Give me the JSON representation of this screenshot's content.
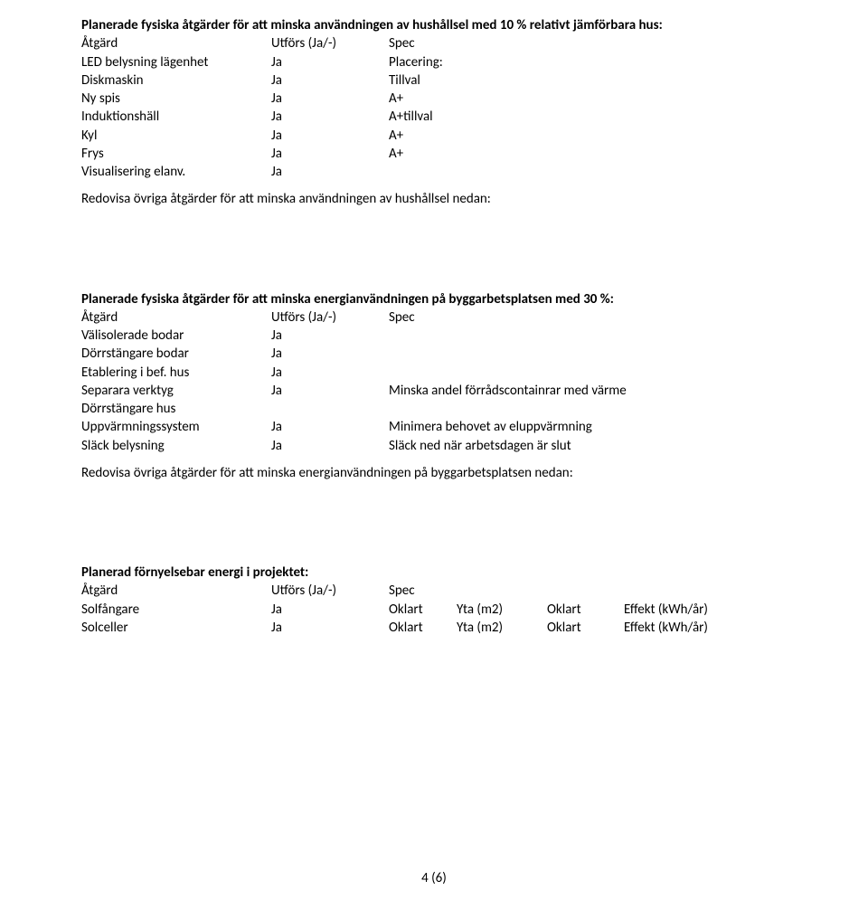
{
  "household": {
    "title": "Planerade fysiska åtgärder för att minska användningen av hushållsel med 10 % relativt jämförbara hus:",
    "header": {
      "a": "Åtgärd",
      "b": "Utförs (Ja/-)",
      "c": "Spec"
    },
    "rows": [
      {
        "a": "LED belysning lägenhet",
        "b": "Ja",
        "c": "Placering:"
      },
      {
        "a": "Diskmaskin",
        "b": "Ja",
        "c": "Tillval"
      },
      {
        "a": "Ny spis",
        "b": "Ja",
        "c": "A+"
      },
      {
        "a": "Induktionshäll",
        "b": "Ja",
        "c": "A+tillval"
      },
      {
        "a": "Kyl",
        "b": "Ja",
        "c": "A+"
      },
      {
        "a": "Frys",
        "b": "Ja",
        "c": "A+"
      },
      {
        "a": "Visualisering elanv.",
        "b": "Ja",
        "c": ""
      }
    ],
    "after": "Redovisa övriga åtgärder för att minska användningen av hushållsel nedan:"
  },
  "construction": {
    "title": "Planerade fysiska åtgärder för att minska energianvändningen på byggarbetsplatsen med 30 %:",
    "header": {
      "a": "Åtgärd",
      "b": "Utförs (Ja/-)",
      "c": "Spec"
    },
    "rows": [
      {
        "a": "Välisolerade bodar",
        "b": "Ja",
        "c": ""
      },
      {
        "a": "Dörrstängare bodar",
        "b": "Ja",
        "c": ""
      },
      {
        "a": "Etablering i bef. hus",
        "b": "Ja",
        "c": ""
      },
      {
        "a": "Separara verktyg",
        "b": "Ja",
        "c": "Minska andel förrådscontainrar med värme"
      },
      {
        "a": "Dörrstängare hus",
        "b": "",
        "c": ""
      },
      {
        "a": "Uppvärmningssystem",
        "b": "Ja",
        "c": "Minimera behovet av eluppvärmning"
      },
      {
        "a": "Släck belysning",
        "b": "Ja",
        "c": "Släck ned när arbetsdagen är slut"
      }
    ],
    "after": "Redovisa övriga åtgärder för att minska energianvändningen på byggarbetsplatsen nedan:"
  },
  "renewable": {
    "title": "Planerad förnyelsebar energi i projektet:",
    "header": {
      "a": "Åtgärd",
      "b": "Utförs (Ja/-)",
      "c": "Spec"
    },
    "rows": [
      {
        "a": "Solfångare",
        "b": "Ja",
        "c": "Oklart",
        "d": "Yta (m2)",
        "e": "Oklart",
        "f": "Effekt (kWh/år)"
      },
      {
        "a": "Solceller",
        "b": "Ja",
        "c": "Oklart",
        "d": "Yta (m2)",
        "e": "Oklart",
        "f": "Effekt (kWh/år)"
      }
    ]
  },
  "footer": "4 (6)"
}
